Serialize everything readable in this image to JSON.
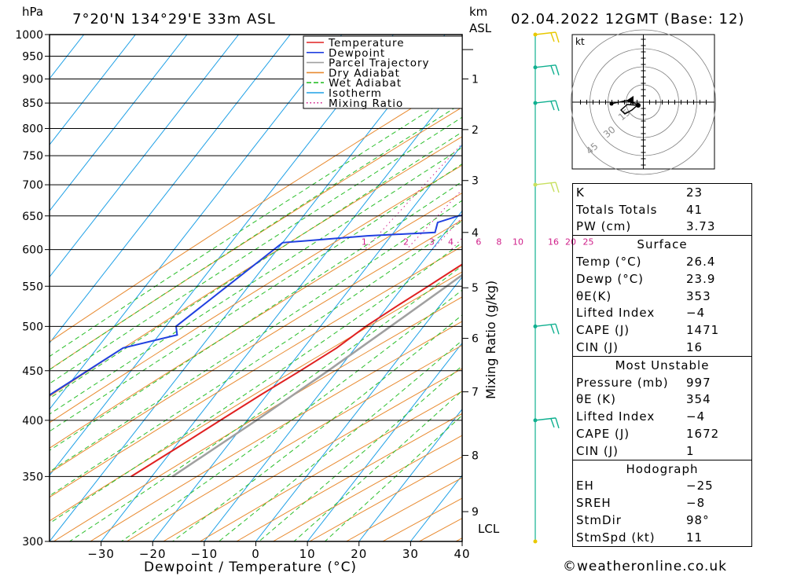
{
  "header": {
    "location": "7°20'N 134°29'E 33m ASL",
    "datetime": "02.04.2022 12GMT (Base: 12)",
    "pressure_unit": "hPa",
    "km_unit": "km",
    "km_unit2": "ASL"
  },
  "chart_data": {
    "type": "line",
    "title": "7°20'N 134°29'E 33m ASL",
    "xlabel": "Dewpoint / Temperature (°C)",
    "ylabel": "hPa",
    "y2label": "Mixing Ratio (g/kg)",
    "xlim": [
      -40,
      40
    ],
    "ylim": [
      1000,
      300
    ],
    "y_scale": "log",
    "skew": "skew-T",
    "x_ticks": [
      -30,
      -20,
      -10,
      0,
      10,
      20,
      30,
      40
    ],
    "pressure_levels": [
      300,
      350,
      400,
      450,
      500,
      550,
      600,
      650,
      700,
      750,
      800,
      850,
      900,
      950,
      1000
    ],
    "km_ticks": [
      {
        "label": "1",
        "p": 900
      },
      {
        "label": "2",
        "p": 798
      },
      {
        "label": "3",
        "p": 707
      },
      {
        "label": "4",
        "p": 625
      },
      {
        "label": "5",
        "p": 548
      },
      {
        "label": "6",
        "p": 486
      },
      {
        "label": "7",
        "p": 428
      },
      {
        "label": "8",
        "p": 368
      },
      {
        "label": "9",
        "p": 322
      }
    ],
    "lcl_label": "LCL",
    "lcl_pressure": 965,
    "mixing_ratio_labels": [
      "1",
      "2",
      "3",
      "4",
      "6",
      "8",
      "10",
      "16",
      "20",
      "25"
    ],
    "legend": [
      "Temperature",
      "Dewpoint",
      "Parcel Trajectory",
      "Dry Adiabat",
      "Wet Adiabat",
      "Isotherm",
      "Mixing Ratio"
    ],
    "legend_position": "top-right",
    "series": [
      {
        "name": "Temperature",
        "color": "#e02020",
        "points": [
          [
            1000,
            26.4
          ],
          [
            975,
            24.8
          ],
          [
            950,
            23.0
          ],
          [
            925,
            21.8
          ],
          [
            900,
            20.2
          ],
          [
            850,
            17.4
          ],
          [
            800,
            15.0
          ],
          [
            775,
            13.6
          ],
          [
            750,
            12.0
          ],
          [
            700,
            8.6
          ],
          [
            650,
            4.6
          ],
          [
            625,
            3.4
          ],
          [
            600,
            0.4
          ],
          [
            575,
            -2.4
          ],
          [
            550,
            -5.2
          ],
          [
            525,
            -8.2
          ],
          [
            500,
            -11.2
          ],
          [
            475,
            -13.6
          ],
          [
            450,
            -17.2
          ],
          [
            425,
            -21.2
          ],
          [
            400,
            -25.2
          ],
          [
            375,
            -29.4
          ],
          [
            350,
            -34.0
          ]
        ]
      },
      {
        "name": "Dewpoint",
        "color": "#2040e0",
        "points": [
          [
            1000,
            23.9
          ],
          [
            950,
            21.4
          ],
          [
            925,
            19.0
          ],
          [
            900,
            18.0
          ],
          [
            850,
            15.4
          ],
          [
            825,
            13.2
          ],
          [
            800,
            13.0
          ],
          [
            790,
            11.0
          ],
          [
            775,
            13.0
          ],
          [
            750,
            10.2
          ],
          [
            725,
            0.6
          ],
          [
            700,
            -3.8
          ],
          [
            690,
            -3.6
          ],
          [
            660,
            -3.0
          ],
          [
            650,
            -10.0
          ],
          [
            640,
            -13.0
          ],
          [
            625,
            -12.0
          ],
          [
            620,
            -24.6
          ],
          [
            610,
            -40.0
          ],
          [
            500,
            -48.0
          ],
          [
            490,
            -46.5
          ],
          [
            475,
            -55.0
          ],
          [
            400,
            -66.0
          ],
          [
            370,
            -70.0
          ],
          [
            350,
            -68.0
          ],
          [
            320,
            -68.0
          ],
          [
            310,
            -57.0
          ],
          [
            300,
            -52.0
          ]
        ]
      },
      {
        "name": "Parcel Trajectory",
        "color": "#a0a0a0",
        "points": [
          [
            1000,
            26.4
          ],
          [
            965,
            23.8
          ],
          [
            900,
            20.6
          ],
          [
            850,
            18.2
          ],
          [
            800,
            15.6
          ],
          [
            750,
            12.8
          ],
          [
            700,
            9.8
          ],
          [
            650,
            6.4
          ],
          [
            600,
            2.6
          ],
          [
            550,
            -1.6
          ],
          [
            500,
            -6.4
          ],
          [
            450,
            -11.8
          ],
          [
            400,
            -18.2
          ],
          [
            350,
            -26.0
          ]
        ]
      }
    ],
    "mixing_ratios": [
      1,
      2,
      3,
      4,
      6,
      8,
      10,
      16,
      20,
      25
    ]
  },
  "hodograph": {
    "unit": "kt",
    "rings": [
      "15",
      "30",
      "45"
    ]
  },
  "wind_barbs": [
    {
      "p": 300,
      "color": "#e8c800"
    },
    {
      "p": 400,
      "color": "#10b090"
    },
    {
      "p": 500,
      "color": "#10b090"
    },
    {
      "p": 700,
      "color": "#c8e060"
    },
    {
      "p": 850,
      "color": "#10b090"
    },
    {
      "p": 925,
      "color": "#10b090"
    },
    {
      "p": 1000,
      "color": "#e8c800"
    }
  ],
  "indices": [
    {
      "k": "K",
      "v": "23"
    },
    {
      "k": "Totals Totals",
      "v": "41"
    },
    {
      "k": "PW (cm)",
      "v": "3.73"
    }
  ],
  "surface": {
    "title": "Surface",
    "rows": [
      {
        "k": "Temp (°C)",
        "v": "26.4"
      },
      {
        "k": "Dewp (°C)",
        "v": "23.9"
      },
      {
        "k": "θE(K)",
        "v": "353"
      },
      {
        "k": "Lifted Index",
        "v": "−4"
      },
      {
        "k": "CAPE (J)",
        "v": "1471"
      },
      {
        "k": "CIN (J)",
        "v": "16"
      }
    ]
  },
  "most_unstable": {
    "title": "Most Unstable",
    "rows": [
      {
        "k": "Pressure (mb)",
        "v": "997"
      },
      {
        "k": "θE (K)",
        "v": "354"
      },
      {
        "k": "Lifted Index",
        "v": "−4"
      },
      {
        "k": "CAPE (J)",
        "v": "1672"
      },
      {
        "k": "CIN (J)",
        "v": "1"
      }
    ]
  },
  "hodograph_table": {
    "title": "Hodograph",
    "rows": [
      {
        "k": "EH",
        "v": "−25"
      },
      {
        "k": "SREH",
        "v": "−8"
      },
      {
        "k": "StmDir",
        "v": "98°"
      },
      {
        "k": "StmSpd (kt)",
        "v": "11"
      }
    ]
  },
  "footer": "©weatheronline.co.uk"
}
